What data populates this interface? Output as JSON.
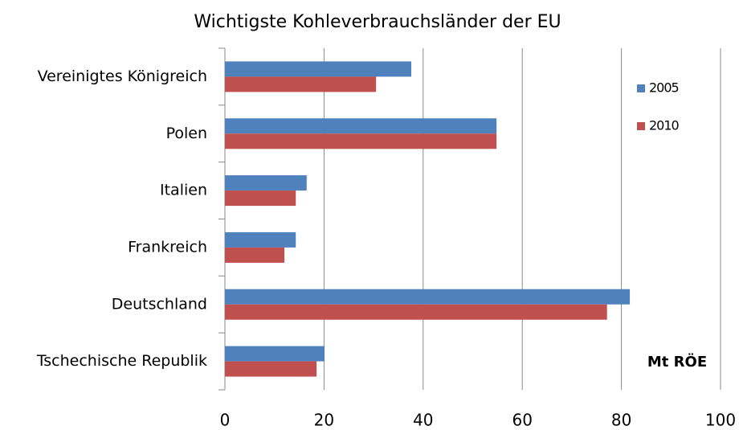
{
  "chart_data": {
    "type": "barh",
    "title": "Wichtigste Kohleverbrauchsländer der EU",
    "categories": [
      "Vereinigtes Königreich",
      "Polen",
      "Italien",
      "Frankreich",
      "Deutschland",
      "Tschechische Republik"
    ],
    "series": [
      {
        "name": "2005",
        "color": "#4f81bd",
        "values": [
          37.6,
          54.8,
          16.5,
          14.3,
          81.7,
          20.1
        ]
      },
      {
        "name": "2010",
        "color": "#c0504d",
        "values": [
          30.5,
          54.8,
          14.3,
          12.0,
          77.1,
          18.5
        ]
      }
    ],
    "xlim": [
      0,
      100
    ],
    "xticks": [
      0,
      20,
      40,
      60,
      80,
      100
    ],
    "grid": true,
    "legend": "upper right",
    "annotation": "Mt RÖE"
  }
}
